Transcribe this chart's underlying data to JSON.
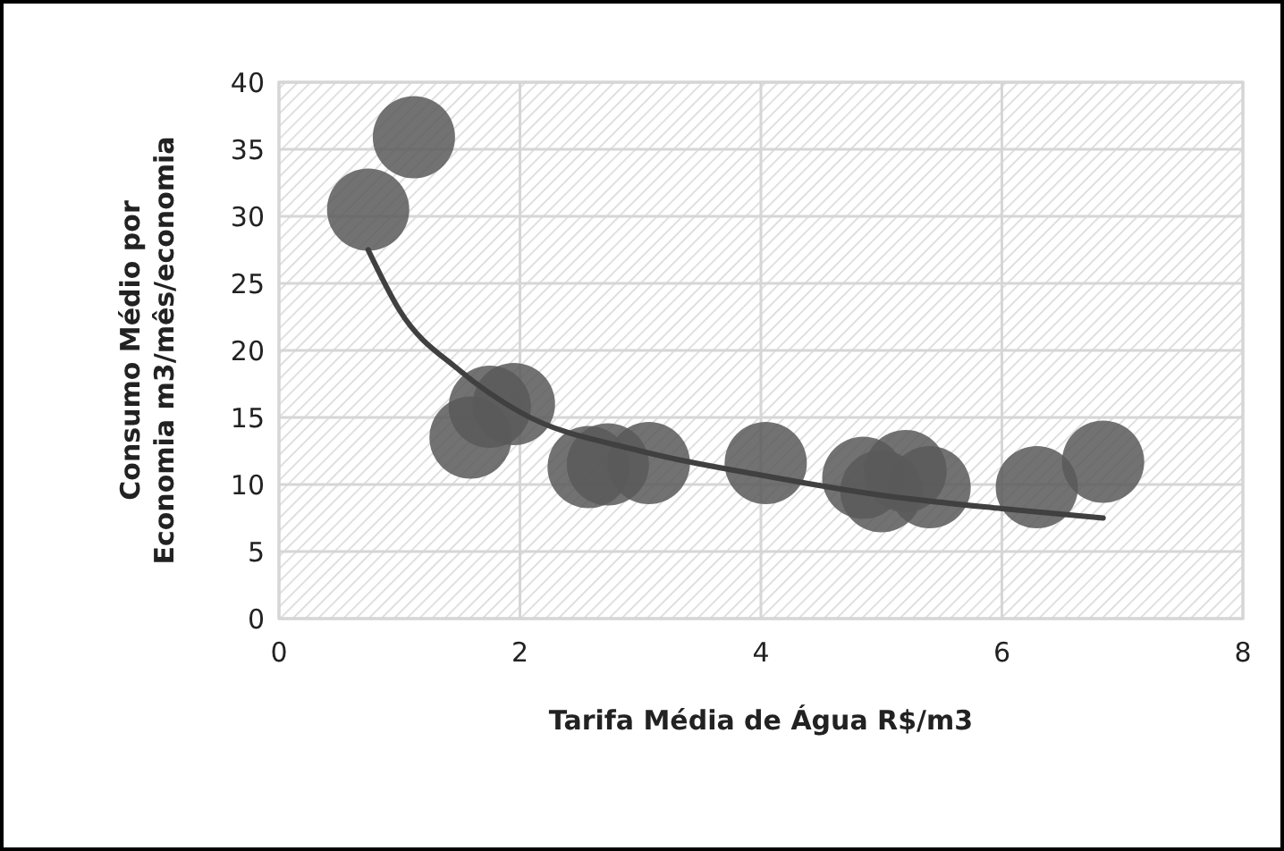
{
  "chart_data": {
    "type": "bubble",
    "xlabel": "Tarifa Média de Água R$/m3",
    "ylabel": "Consumo Médio por\nEconomia m3/mês/economia",
    "xlim": [
      0,
      8
    ],
    "ylim": [
      0,
      40
    ],
    "xticks": [
      0,
      2,
      4,
      6,
      8
    ],
    "yticks": [
      0,
      5,
      10,
      15,
      20,
      25,
      30,
      35,
      40
    ],
    "grid": true,
    "series": [
      {
        "color": "#595959",
        "x": [
          0.74,
          1.12,
          1.59,
          1.75,
          1.95,
          2.57,
          2.73,
          3.07,
          4.04,
          4.85,
          5.0,
          5.2,
          5.4,
          6.29,
          6.84
        ],
        "values": [
          30.5,
          35.9,
          13.5,
          15.8,
          16.0,
          11.3,
          11.5,
          11.6,
          11.6,
          10.5,
          9.5,
          11.0,
          9.8,
          9.8,
          11.7
        ],
        "sizes": [
          1,
          1,
          1,
          1,
          1,
          1,
          1,
          1,
          1,
          1,
          1,
          1,
          1,
          1,
          1
        ]
      },
      {
        "type": "line",
        "color": "#404040",
        "x": [
          0.74,
          1,
          1.5,
          2,
          3,
          4,
          5,
          6,
          6.84
        ],
        "values": [
          27.5,
          23,
          18.5,
          15.4,
          12.5,
          10.7,
          9.2,
          8.2,
          7.5
        ]
      }
    ]
  }
}
